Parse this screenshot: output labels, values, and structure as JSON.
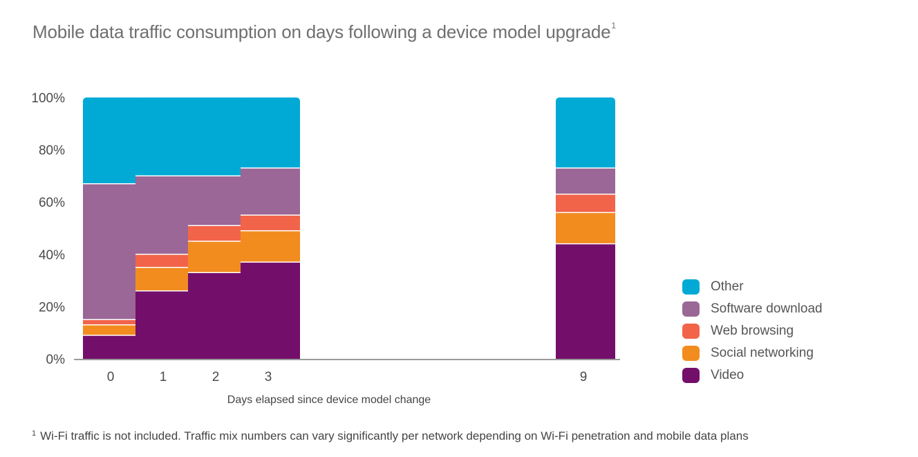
{
  "header": {
    "title": "Mobile data traffic consumption on days following a device model upgrade",
    "title_superscript": "1"
  },
  "footnote": {
    "marker": "1",
    "text": "Wi-Fi traffic is not included. Traffic mix numbers can vary significantly per network depending on Wi-Fi penetration and mobile data plans"
  },
  "chart_data": {
    "type": "bar",
    "stacked": true,
    "title": "Mobile data traffic consumption on days following a device model upgrade",
    "xlabel": "Days elapsed since device model change",
    "ylabel": "",
    "x": [
      0,
      1,
      2,
      3,
      9
    ],
    "categories": [
      "0",
      "1",
      "2",
      "3",
      "9"
    ],
    "ylim": [
      0,
      100
    ],
    "yticks": [
      "0%",
      "20%",
      "40%",
      "60%",
      "80%",
      "100%"
    ],
    "grid": false,
    "legend_position": "right",
    "series": [
      {
        "name": "Video",
        "color": "#730f6b",
        "values": [
          9,
          26,
          33,
          37,
          44
        ]
      },
      {
        "name": "Social networking",
        "color": "#f28c1f",
        "values": [
          4,
          9,
          12,
          12,
          12
        ]
      },
      {
        "name": "Web browsing",
        "color": "#f2644a",
        "values": [
          2,
          5,
          6,
          6,
          7
        ]
      },
      {
        "name": "Software download",
        "color": "#9b6796",
        "values": [
          52,
          30,
          19,
          18,
          10
        ]
      },
      {
        "name": "Other",
        "color": "#00aad5",
        "values": [
          33,
          30,
          30,
          27,
          27
        ]
      }
    ]
  },
  "legend_order": [
    "Other",
    "Software download",
    "Web browsing",
    "Social networking",
    "Video"
  ]
}
